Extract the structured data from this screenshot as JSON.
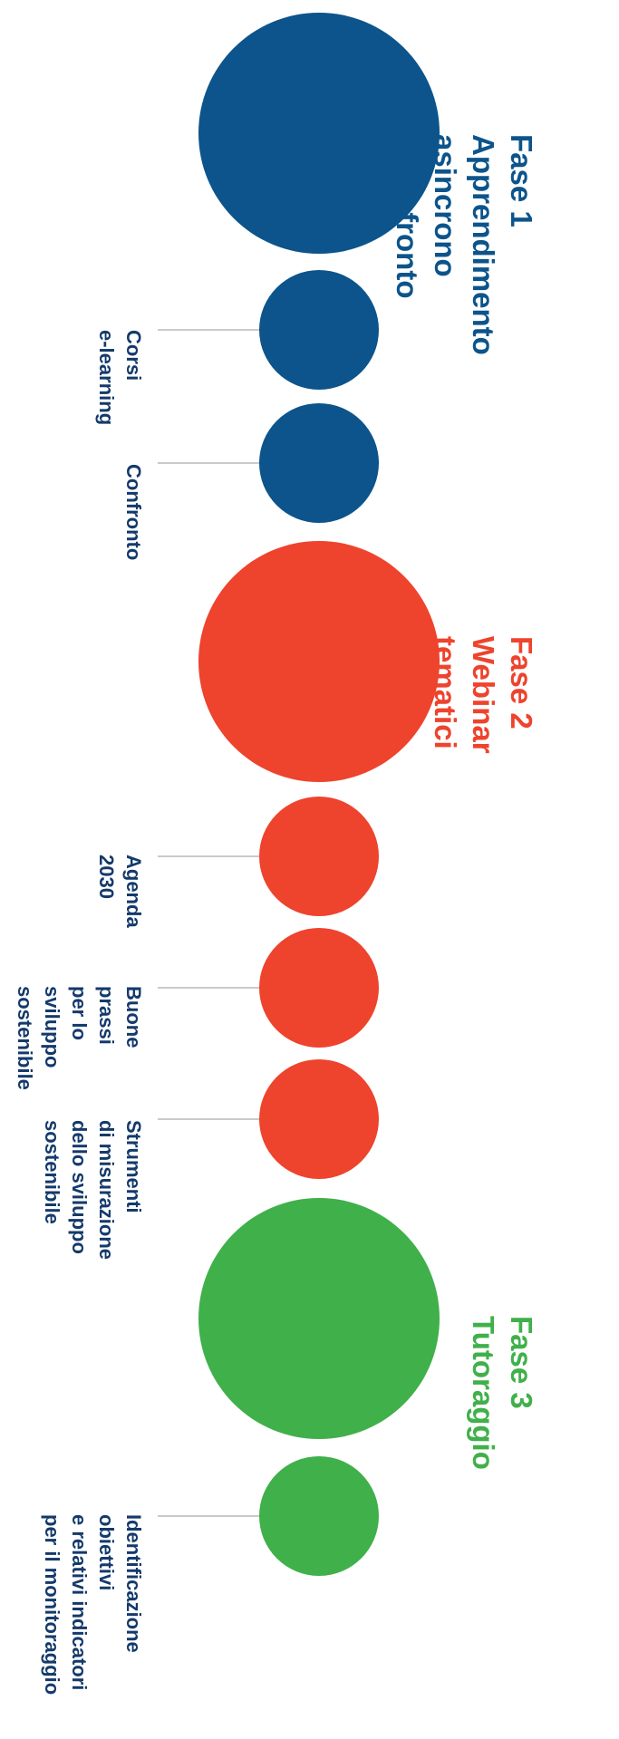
{
  "colors": {
    "phase1": "#0c548b",
    "phase2": "#ee432d",
    "phase3": "#40b04a",
    "label_text": "#143a6b",
    "connector": "#b9b9b9"
  },
  "phases": [
    {
      "title": "Fase 1",
      "subtitle": "Apprendimento\nasincrono\ne confronto",
      "items": [
        "Corsi\ne-learning",
        "Confronto"
      ]
    },
    {
      "title": "Fase 2",
      "subtitle": "Webinar\ntematici",
      "items": [
        "Agenda\n2030",
        "Buone\nprassi\nper lo\nsviluppo\nsostenibile",
        "Strumenti\ndi misurazione\ndello sviluppo\nsostenibile"
      ]
    },
    {
      "title": "Fase 3",
      "subtitle": "Tutoraggio",
      "items": [
        "Identificazione\nobiettivi\ne relativi indicatori\nper il monitoraggio"
      ]
    }
  ]
}
